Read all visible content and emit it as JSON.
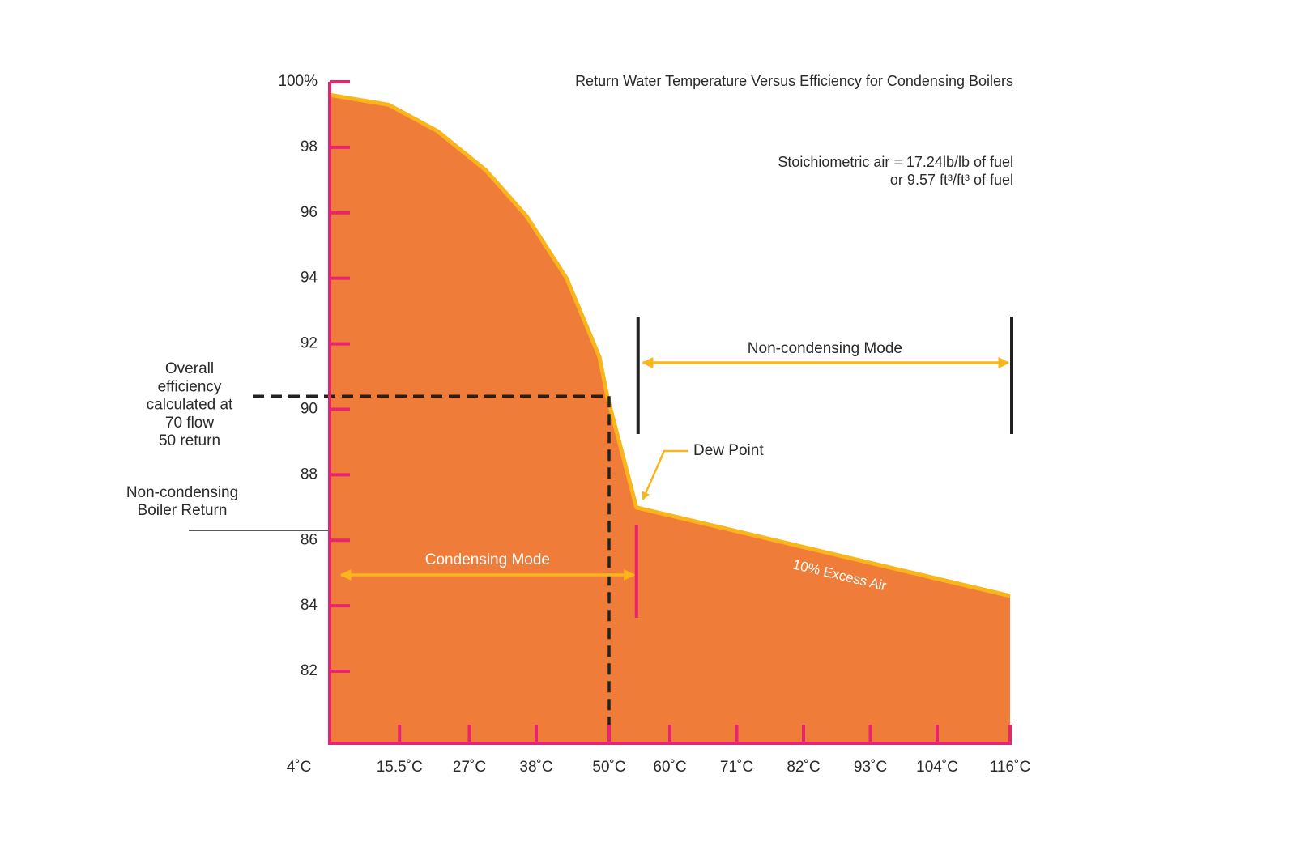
{
  "chart_data": {
    "type": "area",
    "title": "Return Water Temperature Versus Efficiency for Condensing Boilers",
    "note": [
      "Stoichiometric air = 17.24lb/lb of fuel",
      "or 9.57 ft³/ft³ of fuel"
    ],
    "x": [
      4,
      13.7,
      21.7,
      29.7,
      36.4,
      43,
      48.4,
      49.7,
      54.5,
      116
    ],
    "series": [
      {
        "name": "10% Excess Air",
        "color": "#F9B51A",
        "fill": "#EF7D39",
        "values": [
          99.6,
          99.3,
          98.5,
          97.3,
          95.9,
          94.0,
          91.6,
          90.4,
          87.0,
          84.3
        ]
      }
    ],
    "xlim": [
      4,
      116
    ],
    "ylim": [
      79.8,
      100
    ],
    "xticks": [
      {
        "value": 4,
        "label": "4˚C"
      },
      {
        "value": 15.5,
        "label": "15.5˚C"
      },
      {
        "value": 27,
        "label": "27˚C"
      },
      {
        "value": 38,
        "label": "38˚C"
      },
      {
        "value": 50,
        "label": "50˚C"
      },
      {
        "value": 60,
        "label": "60˚C"
      },
      {
        "value": 71,
        "label": "71˚C"
      },
      {
        "value": 82,
        "label": "82˚C"
      },
      {
        "value": 93,
        "label": "93˚C"
      },
      {
        "value": 104,
        "label": "104˚C"
      },
      {
        "value": 116,
        "label": "116˚C"
      }
    ],
    "yticks": [
      {
        "value": 100,
        "label": "100%"
      },
      98,
      96,
      94,
      92,
      90,
      88,
      86,
      84,
      82
    ],
    "axis_color": "#E8236F",
    "modes": [
      {
        "label": "Condensing Mode",
        "range": [
          4,
          54.5
        ]
      },
      {
        "label": "Non-condensing Mode",
        "range": [
          54.5,
          116
        ]
      }
    ],
    "dew_point": {
      "label": "Dew Point",
      "x": 54.5,
      "y": 87.0
    },
    "operating_point": {
      "label": [
        "Overall",
        "efficiency",
        "calculated at",
        "70 flow",
        "50 return"
      ],
      "x": 50,
      "y": 90.4
    },
    "reference_line": {
      "label": [
        "Non-condensing",
        "Boiler Return"
      ],
      "y": 86.3
    }
  }
}
